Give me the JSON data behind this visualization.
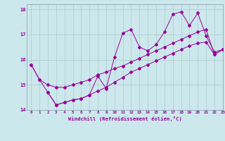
{
  "xlabel": "Windchill (Refroidissement éolien,°C)",
  "bg_color": "#cce8ec",
  "grid_color": "#aacccc",
  "line_color": "#990099",
  "xmin": -0.5,
  "xmax": 23,
  "ymin": 14,
  "ymax": 18.2,
  "x_jagged": [
    0,
    1,
    2,
    3,
    4,
    5,
    6,
    7,
    8,
    9,
    10,
    11,
    12,
    13,
    14,
    15,
    16,
    17,
    18,
    19,
    20,
    21,
    22,
    23
  ],
  "y_jagged": [
    15.8,
    15.2,
    14.7,
    14.2,
    14.3,
    14.4,
    14.45,
    14.6,
    15.35,
    14.85,
    16.1,
    17.05,
    17.2,
    16.5,
    16.35,
    16.6,
    17.1,
    17.8,
    17.9,
    17.35,
    17.85,
    16.95,
    16.3,
    16.4
  ],
  "x_lower": [
    2,
    3,
    4,
    5,
    6,
    7,
    8,
    9,
    10,
    11,
    12,
    13,
    14,
    15,
    16,
    17,
    18,
    19,
    20,
    21,
    22,
    23
  ],
  "y_lower": [
    14.7,
    14.2,
    14.3,
    14.4,
    14.45,
    14.6,
    14.75,
    14.9,
    15.1,
    15.3,
    15.5,
    15.65,
    15.8,
    15.95,
    16.1,
    16.25,
    16.4,
    16.55,
    16.65,
    16.7,
    16.2,
    16.4
  ],
  "x_upper": [
    0,
    1,
    2,
    3,
    4,
    5,
    6,
    7,
    8,
    9,
    10,
    11,
    12,
    13,
    14,
    15,
    16,
    17,
    18,
    19,
    20,
    21,
    22,
    23
  ],
  "y_upper": [
    15.8,
    15.2,
    15.0,
    14.9,
    14.9,
    15.0,
    15.1,
    15.2,
    15.4,
    15.5,
    15.65,
    15.75,
    15.9,
    16.05,
    16.2,
    16.35,
    16.5,
    16.65,
    16.8,
    16.95,
    17.1,
    17.2,
    16.2,
    16.4
  ],
  "yticks": [
    14,
    15,
    16,
    17,
    18
  ],
  "xticks": [
    0,
    1,
    2,
    3,
    4,
    5,
    6,
    7,
    8,
    9,
    10,
    11,
    12,
    13,
    14,
    15,
    16,
    17,
    18,
    19,
    20,
    21,
    22,
    23
  ]
}
